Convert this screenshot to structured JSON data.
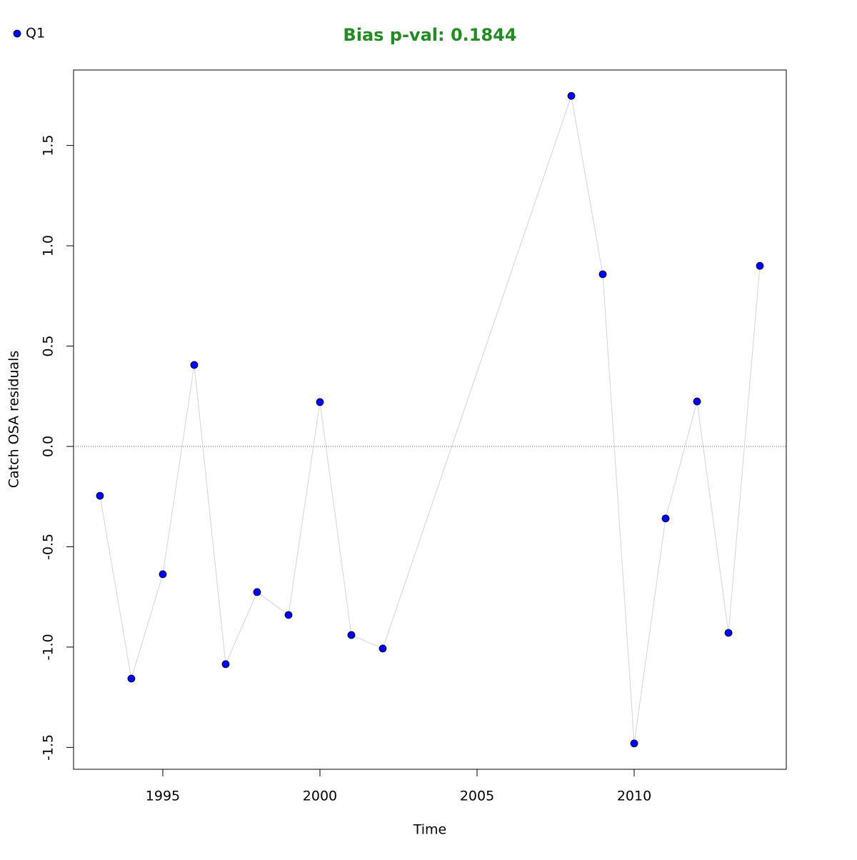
{
  "chart_data": {
    "type": "line",
    "title": "Bias p-val: 0.1844",
    "title_color": "#228b22",
    "x_label": "Time",
    "y_label": "Catch OSA residuals",
    "x": [
      1993,
      1994,
      1995,
      1996,
      1997,
      1998,
      1999,
      2000,
      2001,
      2002,
      2008,
      2009,
      2010,
      2011,
      2012,
      2013,
      2014
    ],
    "series": [
      {
        "name": "Q1",
        "color": "#0000ff",
        "line_color": "#d3d3d3",
        "values": [
          -0.246,
          -1.157,
          -0.637,
          0.406,
          -1.085,
          -0.726,
          -0.84,
          0.221,
          -0.94,
          -1.007,
          1.747,
          0.858,
          -1.48,
          -0.359,
          0.224,
          -0.929,
          0.9
        ]
      }
    ],
    "xlim": [
      1992.16,
      2014.84
    ],
    "xticks": [
      1995,
      2000,
      2005,
      2010
    ],
    "ylim": [
      -1.609,
      1.876
    ],
    "yticks": [
      -1.5,
      {
        "value": -1,
        "label": "-1.0"
      },
      -0.5,
      {
        "value": 0,
        "label": "0.0"
      },
      0.5,
      {
        "value": 1,
        "label": "1.0"
      },
      1.5
    ],
    "reference_line": 0,
    "legend": "top-left"
  }
}
